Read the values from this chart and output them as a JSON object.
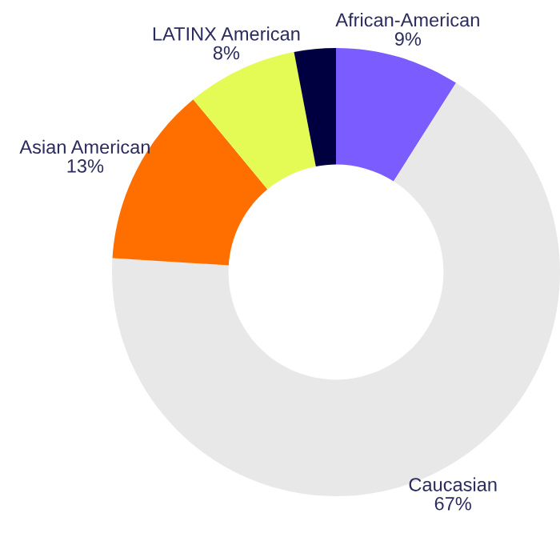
{
  "chart_data": {
    "type": "donut",
    "categories": [
      "African-American",
      "Caucasian",
      "Asian American",
      "LATINX American",
      null
    ],
    "values": [
      9,
      67,
      13,
      8,
      3
    ],
    "value_labels": [
      "9%",
      "67%",
      "13%",
      "8%",
      null
    ],
    "colors": [
      "#7b5cff",
      "#e8e8e8",
      "#ff6f00",
      "#e4fa55",
      "#000040"
    ],
    "legend": false
  }
}
